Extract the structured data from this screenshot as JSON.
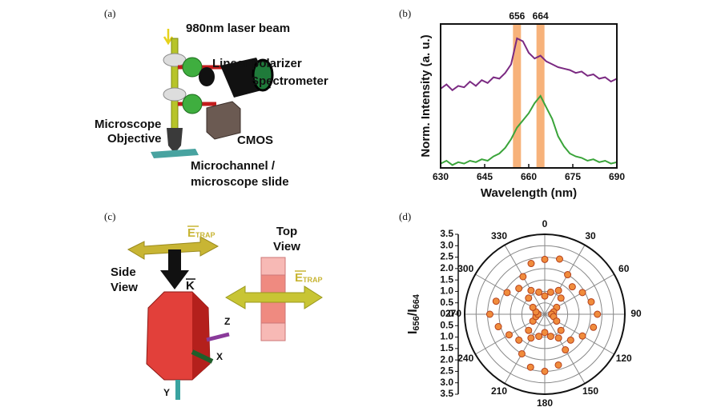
{
  "panel_labels": [
    "(a)",
    "(b)",
    "(c)",
    "(d)"
  ],
  "diagram_a": {
    "labels": [
      "980nm laser beam",
      "Linear polarizer",
      "Spectrometer",
      "Microscope",
      "Objective",
      "CMOS",
      "Microchannel /",
      "microscope slide"
    ]
  },
  "diagram_c": {
    "e_trap": [
      "E",
      "TRAP"
    ],
    "k": "K",
    "top_view": [
      "Top",
      "View"
    ],
    "side_view": [
      "Side",
      "View"
    ],
    "axes": [
      "Z",
      "X",
      "Y"
    ]
  },
  "chart_data": [
    {
      "type": "line",
      "xlabel": "Wavelength (nm)",
      "ylabel": "Norm. Intensity (a. u.)",
      "x": [
        630,
        632,
        634,
        636,
        638,
        640,
        642,
        644,
        646,
        648,
        650,
        652,
        654,
        656,
        658,
        660,
        662,
        664,
        666,
        668,
        670,
        672,
        674,
        676,
        678,
        680,
        682,
        684,
        686,
        688,
        690
      ],
      "series": [
        {
          "color": "#7b2a82",
          "values": [
            0.55,
            0.58,
            0.54,
            0.57,
            0.56,
            0.6,
            0.57,
            0.61,
            0.59,
            0.63,
            0.62,
            0.66,
            0.72,
            0.9,
            0.88,
            0.8,
            0.76,
            0.78,
            0.74,
            0.72,
            0.7,
            0.69,
            0.68,
            0.66,
            0.67,
            0.64,
            0.65,
            0.62,
            0.63,
            0.6,
            0.62
          ]
        },
        {
          "color": "#3aa43a",
          "values": [
            0.03,
            0.05,
            0.02,
            0.04,
            0.03,
            0.05,
            0.04,
            0.06,
            0.05,
            0.08,
            0.1,
            0.14,
            0.2,
            0.28,
            0.33,
            0.38,
            0.45,
            0.5,
            0.42,
            0.34,
            0.22,
            0.15,
            0.1,
            0.08,
            0.07,
            0.05,
            0.06,
            0.04,
            0.05,
            0.03,
            0.04
          ]
        }
      ],
      "xlim": [
        630,
        690
      ],
      "xticks": [
        630,
        645,
        660,
        675,
        690
      ],
      "ylim": [
        0,
        1
      ],
      "highlights": [
        656,
        664
      ],
      "highlight_color": "#f7b27a"
    },
    {
      "type": "polar_scatter",
      "ylabel": [
        "I",
        "656",
        "/I",
        "664"
      ],
      "theta": [
        0,
        15,
        30,
        45,
        60,
        75,
        90,
        105,
        120,
        135,
        150,
        165,
        180,
        195,
        210,
        225,
        240,
        255,
        270,
        285,
        300,
        315,
        330,
        345,
        0,
        15,
        30,
        45,
        60,
        75,
        90,
        105,
        120,
        135,
        150,
        165,
        180,
        195,
        210,
        225,
        240,
        255,
        270,
        285,
        300,
        315,
        330,
        345
      ],
      "r": [
        2.4,
        2.5,
        2.0,
        1.7,
        1.9,
        2.1,
        2.3,
        2.2,
        1.9,
        1.6,
        1.8,
        2.3,
        2.5,
        2.4,
        2.0,
        1.6,
        1.8,
        2.1,
        2.4,
        2.2,
        1.9,
        1.6,
        1.9,
        2.3,
        0.8,
        1.0,
        1.2,
        1.0,
        0.6,
        0.4,
        0.3,
        0.4,
        0.6,
        1.0,
        1.2,
        1.0,
        0.8,
        1.0,
        1.2,
        1.0,
        0.6,
        0.4,
        0.3,
        0.4,
        0.6,
        1.0,
        1.2,
        1.0
      ],
      "color": "#f08c3c",
      "edge_color": "#b5401c",
      "ylim": [
        0,
        3.5
      ],
      "yticks": [
        {
          "value": 0,
          "label": "0.0"
        },
        {
          "value": 0.5,
          "label": "0.5"
        },
        {
          "value": 1,
          "label": "1.0"
        },
        {
          "value": 1.5,
          "label": "1.5"
        },
        {
          "value": 2,
          "label": "2.0"
        },
        {
          "value": 2.5,
          "label": "2.5"
        },
        {
          "value": 3,
          "label": "3.0"
        },
        {
          "value": 3.5,
          "label": "3.5"
        }
      ],
      "xticks": [
        0,
        30,
        60,
        90,
        120,
        150,
        180,
        210,
        240,
        270,
        300,
        330
      ],
      "grid": true
    }
  ]
}
